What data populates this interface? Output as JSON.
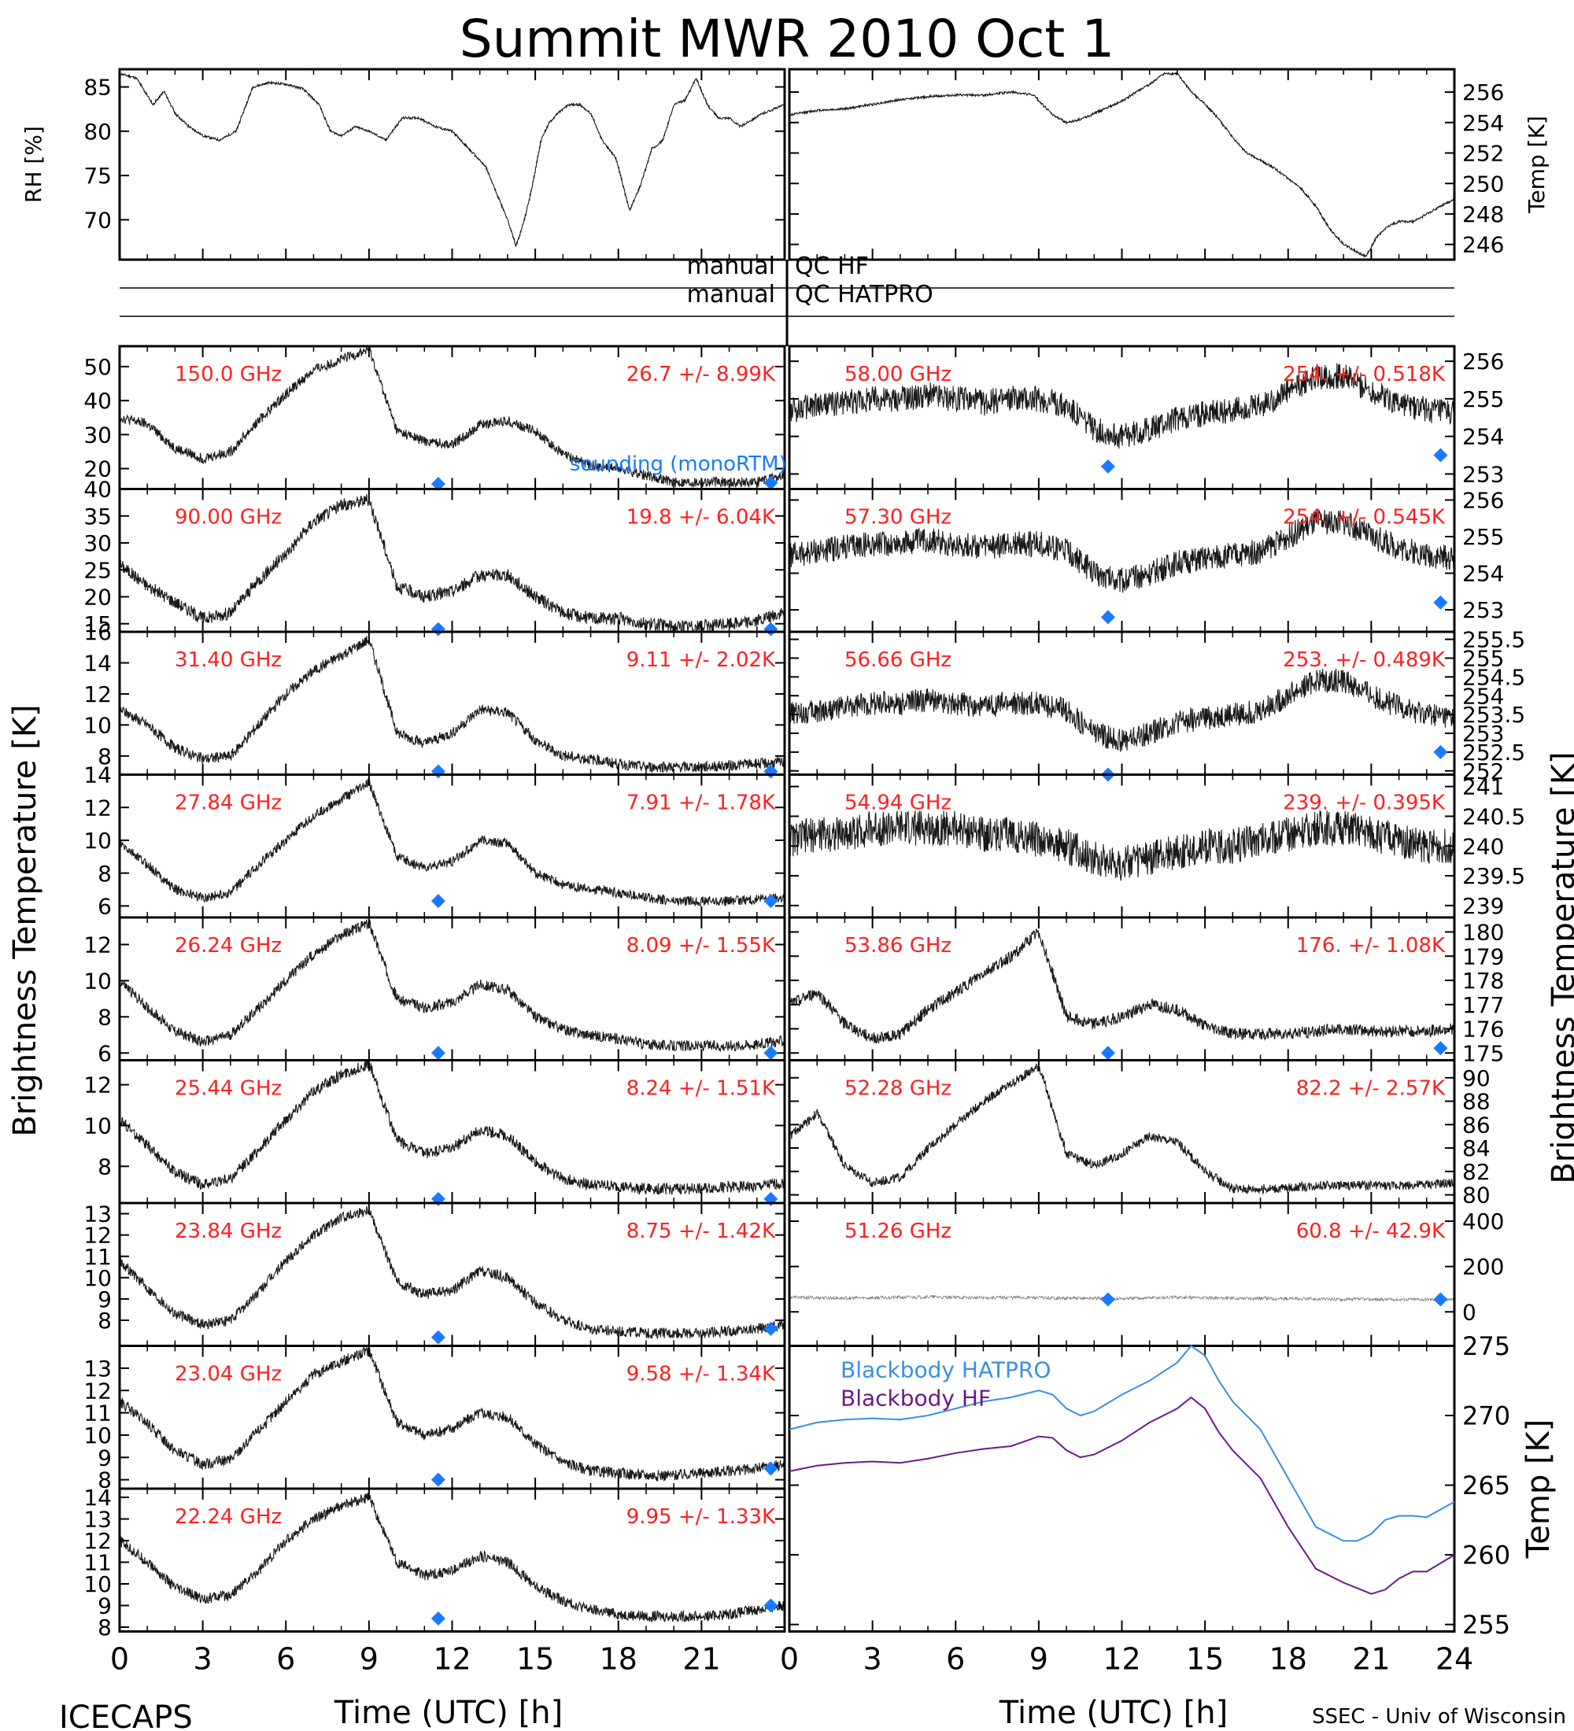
{
  "title": "Summit MWR 2010 Oct  1",
  "footer": {
    "left": "ICECAPS",
    "right": "SSEC - Univ of Wisconsin"
  },
  "xlabel": "Time (UTC) [h]",
  "x_ticks": [
    0,
    3,
    6,
    9,
    12,
    15,
    18,
    21,
    24
  ],
  "ylabel_left": "Brightness Temperature [K]",
  "ylabel_right": "Brightness Temperature [K]",
  "qc_labels": [
    {
      "left": "manual",
      "right": "QC HF"
    },
    {
      "left": "manual",
      "right": "QC HATPRO"
    }
  ],
  "colors": {
    "trace": "#000000",
    "label": "#ff2020",
    "sounding": "#1a7aff",
    "bb_hatpro": "#3a8ee6",
    "bb_hf": "#6a1a8a"
  },
  "chart_data": [
    {
      "type": "line",
      "panel": "met-left",
      "ylabel": "RH [%]",
      "yticks": [
        70,
        75,
        80,
        85
      ],
      "ylim": [
        65.5,
        87
      ],
      "x": [
        0,
        0.6,
        1.2,
        1.6,
        2.0,
        2.5,
        3.0,
        3.6,
        4.2,
        4.8,
        5.4,
        6.0,
        6.6,
        7.2,
        7.6,
        8.0,
        8.5,
        9.0,
        9.6,
        10.2,
        10.8,
        11.4,
        12.0,
        12.6,
        13.2,
        13.6,
        14.0,
        14.3,
        14.6,
        14.9,
        15.2,
        15.5,
        15.8,
        16.2,
        16.6,
        17.0,
        17.4,
        17.9,
        18.4,
        18.8,
        19.2,
        19.6,
        20.0,
        20.4,
        20.8,
        21.2,
        21.6,
        22.0,
        22.4,
        22.8,
        23.2,
        23.6,
        24.0
      ],
      "y": [
        86.5,
        86,
        83,
        84.5,
        82,
        80.5,
        79.5,
        79,
        80,
        85,
        85.5,
        85.3,
        84.8,
        83,
        80,
        79.5,
        80.5,
        80,
        79,
        81.5,
        81.5,
        80.5,
        80,
        78,
        76,
        73,
        70,
        67,
        70,
        74,
        79,
        81,
        82,
        83,
        83,
        82,
        79,
        77,
        71,
        74,
        78,
        79,
        83,
        83.5,
        86,
        83,
        81.5,
        81.5,
        80.5,
        81.3,
        82,
        82.5,
        83
      ]
    },
    {
      "type": "line",
      "panel": "met-right",
      "ylabel": "Temp [K]",
      "yticks": [
        246,
        248,
        250,
        252,
        254,
        256
      ],
      "ylim": [
        245,
        257.5
      ],
      "x": [
        0,
        1.0,
        2.0,
        3.0,
        4.0,
        5.0,
        6.0,
        7.0,
        8.0,
        8.8,
        9.5,
        10.0,
        10.5,
        11.0,
        11.5,
        12.0,
        12.5,
        13.0,
        13.5,
        14.0,
        14.5,
        15.0,
        15.5,
        16.0,
        16.5,
        17.0,
        17.5,
        18.0,
        18.5,
        19.0,
        19.5,
        20.0,
        20.5,
        20.8,
        21.2,
        21.6,
        22.0,
        22.5,
        23.0,
        23.5,
        24.0
      ],
      "y": [
        254.5,
        254.8,
        254.9,
        255.2,
        255.5,
        255.7,
        255.8,
        255.8,
        256,
        255.8,
        254.5,
        254,
        254.2,
        254.6,
        255,
        255.4,
        256,
        256.5,
        257.2,
        257.2,
        256,
        255.2,
        254.2,
        253,
        252,
        251.5,
        251,
        250.3,
        249.6,
        248.5,
        247,
        246,
        245.5,
        245.2,
        246.5,
        247.2,
        247.5,
        247.5,
        248,
        248.5,
        249
      ]
    },
    {
      "type": "line",
      "panel": "left",
      "freq": "150.0 GHz",
      "stats": "26.7 +/-  8.99K",
      "yticks": [
        20,
        30,
        40,
        50
      ],
      "ylim": [
        14,
        56
      ],
      "y": [
        35,
        33,
        26,
        23,
        25,
        34,
        42,
        49,
        52,
        55,
        31,
        28,
        27,
        33,
        34,
        31,
        24,
        21,
        20,
        18,
        16,
        16,
        16,
        16,
        18
      ],
      "noise": 1.5,
      "sounding": [
        15.5,
        15.8
      ],
      "sounding_note": "sounding (monoRTM)"
    },
    {
      "type": "line",
      "panel": "left",
      "freq": "90.00 GHz",
      "stats": "19.8 +/-  6.04K",
      "yticks": [
        15,
        20,
        25,
        30,
        35,
        40
      ],
      "ylim": [
        13.5,
        40
      ],
      "y": [
        26,
        22,
        19,
        16,
        17,
        23,
        28,
        34,
        37,
        38,
        22,
        20,
        21,
        24,
        24,
        20,
        17,
        16,
        16,
        15,
        14.5,
        14.5,
        15,
        15.5,
        17
      ],
      "noise": 1.2,
      "sounding": [
        14,
        14
      ]
    },
    {
      "type": "line",
      "panel": "left",
      "freq": "31.40 GHz",
      "stats": "9.11 +/- 2.02K",
      "yticks": [
        8,
        10,
        12,
        14,
        16
      ],
      "ylim": [
        6.8,
        16
      ],
      "y": [
        11,
        10,
        8.5,
        7.8,
        8,
        10,
        12,
        13.5,
        14.5,
        15.5,
        9.5,
        8.8,
        9.5,
        11,
        10.8,
        9,
        8,
        7.8,
        7.5,
        7.3,
        7.3,
        7.3,
        7.4,
        7.5,
        7.6
      ],
      "noise": 0.35,
      "sounding": [
        7,
        7
      ]
    },
    {
      "type": "line",
      "panel": "left",
      "freq": "27.84 GHz",
      "stats": "7.91 +/- 1.78K",
      "yticks": [
        6,
        8,
        10,
        12,
        14
      ],
      "ylim": [
        5.3,
        14
      ],
      "y": [
        9.8,
        8.5,
        7,
        6.5,
        6.8,
        8.5,
        10,
        11.5,
        12.5,
        13.5,
        9,
        8.3,
        8.7,
        10,
        9.8,
        8,
        7.3,
        7,
        6.8,
        6.5,
        6.3,
        6.3,
        6.3,
        6.4,
        6.5
      ],
      "noise": 0.3,
      "sounding": [
        6.3,
        6.3
      ]
    },
    {
      "type": "line",
      "panel": "left",
      "freq": "26.24 GHz",
      "stats": "8.09 +/- 1.55K",
      "yticks": [
        6,
        8,
        10,
        12
      ],
      "ylim": [
        5.6,
        13.5
      ],
      "y": [
        10,
        8.5,
        7.2,
        6.6,
        7,
        8.5,
        10,
        11.5,
        12.5,
        13.2,
        9,
        8.5,
        8.8,
        9.8,
        9.5,
        8,
        7.3,
        7,
        6.8,
        6.5,
        6.4,
        6.4,
        6.4,
        6.5,
        6.7
      ],
      "noise": 0.3,
      "sounding": [
        6,
        6
      ]
    },
    {
      "type": "line",
      "panel": "left",
      "freq": "25.44 GHz",
      "stats": "8.24 +/- 1.51K",
      "yticks": [
        8,
        10,
        12
      ],
      "ylim": [
        6.2,
        13.2
      ],
      "y": [
        10.3,
        9,
        7.7,
        7.1,
        7.4,
        8.8,
        10.3,
        11.7,
        12.5,
        13,
        9.3,
        8.6,
        8.9,
        9.8,
        9.5,
        8.2,
        7.4,
        7.1,
        7,
        6.9,
        6.9,
        6.9,
        7,
        7,
        7.2
      ],
      "noise": 0.28,
      "sounding": [
        6.4,
        6.4
      ]
    },
    {
      "type": "line",
      "panel": "left",
      "freq": "23.84 GHz",
      "stats": "8.75 +/- 1.42K",
      "yticks": [
        8,
        9,
        10,
        11,
        12,
        13
      ],
      "ylim": [
        6.8,
        13.5
      ],
      "y": [
        10.8,
        9.5,
        8.3,
        7.8,
        8,
        9.3,
        10.8,
        12,
        12.8,
        13.2,
        9.8,
        9.2,
        9.4,
        10.3,
        10,
        8.8,
        8,
        7.6,
        7.5,
        7.4,
        7.4,
        7.4,
        7.5,
        7.6,
        7.8
      ],
      "noise": 0.25,
      "sounding": [
        7.2,
        7.6
      ]
    },
    {
      "type": "line",
      "panel": "left",
      "freq": "23.04 GHz",
      "stats": "9.58 +/- 1.34K",
      "yticks": [
        8,
        9,
        10,
        11,
        12,
        13
      ],
      "ylim": [
        7.6,
        14
      ],
      "y": [
        11.5,
        10.5,
        9.3,
        8.7,
        8.9,
        10.2,
        11.5,
        12.7,
        13.3,
        13.8,
        10.6,
        10,
        10.3,
        11,
        10.8,
        9.6,
        8.8,
        8.4,
        8.3,
        8.2,
        8.2,
        8.3,
        8.4,
        8.5,
        8.7
      ],
      "noise": 0.25,
      "sounding": [
        8,
        8.5
      ]
    },
    {
      "type": "line",
      "panel": "left",
      "freq": "22.24 GHz",
      "stats": "9.95 +/- 1.33K",
      "yticks": [
        8,
        9,
        10,
        11,
        12,
        13,
        14
      ],
      "ylim": [
        7.8,
        14.4
      ],
      "y": [
        12,
        11,
        9.8,
        9.3,
        9.5,
        10.6,
        12,
        13,
        13.6,
        14,
        11,
        10.4,
        10.6,
        11.3,
        11,
        9.9,
        9.2,
        8.8,
        8.6,
        8.5,
        8.5,
        8.5,
        8.6,
        8.8,
        9
      ],
      "noise": 0.25,
      "sounding": [
        8.4,
        9
      ]
    },
    {
      "type": "line",
      "panel": "right",
      "freq": "58.00 GHz",
      "stats": "254. +/- 0.518K",
      "yticks": [
        253,
        254,
        255,
        256
      ],
      "ylim": [
        252.6,
        256.4
      ],
      "y": [
        254.7,
        254.8,
        254.9,
        255,
        255,
        255.1,
        255,
        254.9,
        255,
        255,
        254.8,
        254.2,
        254,
        254.2,
        254.5,
        254.6,
        254.7,
        254.8,
        255.2,
        255.6,
        255.6,
        255.2,
        254.9,
        254.7,
        254.6
      ],
      "noise": 0.35,
      "sounding": [
        253.2,
        253.5
      ]
    },
    {
      "type": "line",
      "panel": "right",
      "freq": "57.30 GHz",
      "stats": "254. +/- 0.545K",
      "yticks": [
        253,
        254,
        255,
        256
      ],
      "ylim": [
        252.4,
        256.3
      ],
      "y": [
        254.5,
        254.6,
        254.7,
        254.8,
        254.8,
        254.9,
        254.8,
        254.7,
        254.8,
        254.8,
        254.6,
        254,
        253.8,
        254,
        254.3,
        254.4,
        254.5,
        254.6,
        255,
        255.4,
        255.4,
        255,
        254.7,
        254.5,
        254.4
      ],
      "noise": 0.35,
      "sounding": [
        252.8,
        253.2
      ]
    },
    {
      "type": "line",
      "panel": "right",
      "freq": "56.66 GHz",
      "stats": "253. +/- 0.489K",
      "yticks": [
        252,
        252.5,
        253,
        253.5,
        254,
        254.5,
        255,
        255.5
      ],
      "ylim": [
        251.9,
        255.7
      ],
      "y": [
        253.5,
        253.6,
        253.7,
        253.8,
        253.8,
        253.9,
        253.8,
        253.7,
        253.8,
        253.8,
        253.6,
        253,
        252.8,
        253,
        253.3,
        253.4,
        253.5,
        253.6,
        254,
        254.4,
        254.4,
        254,
        253.7,
        253.5,
        253.4
      ],
      "noise": 0.32,
      "sounding": [
        251.9,
        252.5
      ]
    },
    {
      "type": "line",
      "panel": "right",
      "freq": "54.94 GHz",
      "stats": "239. +/- 0.395K",
      "yticks": [
        239,
        239.5,
        240,
        240.5,
        241
      ],
      "ylim": [
        238.8,
        241.2
      ],
      "y": [
        240.1,
        240.2,
        240.2,
        240.3,
        240.3,
        240.3,
        240.3,
        240.2,
        240.2,
        240.1,
        240,
        239.8,
        239.7,
        239.8,
        239.9,
        240,
        240,
        240.1,
        240.2,
        240.3,
        240.3,
        240.2,
        240.1,
        240,
        240
      ],
      "noise": 0.3,
      "sounding": []
    },
    {
      "type": "line",
      "panel": "right",
      "freq": "53.86 GHz",
      "stats": "176. +/- 1.08K",
      "yticks": [
        175,
        176,
        177,
        178,
        179,
        180
      ],
      "ylim": [
        174.7,
        180.6
      ],
      "y": [
        177,
        177.5,
        176.2,
        175.6,
        175.8,
        176.8,
        177.5,
        178.3,
        179,
        180,
        176.5,
        176.2,
        176.5,
        177,
        176.8,
        176.1,
        175.8,
        175.8,
        175.8,
        175.9,
        176,
        175.9,
        175.9,
        175.9,
        176
      ],
      "noise": 0.25,
      "sounding": [
        175,
        175.2
      ]
    },
    {
      "type": "line",
      "panel": "right",
      "freq": "52.28 GHz",
      "stats": "82.2 +/- 2.57K",
      "yticks": [
        80,
        82,
        84,
        86,
        88,
        90
      ],
      "ylim": [
        79.3,
        91.5
      ],
      "y": [
        85,
        87,
        82.5,
        81,
        81.5,
        84,
        86,
        88,
        89.5,
        91,
        83.5,
        82.5,
        83.5,
        85,
        84.5,
        82,
        80.5,
        80.5,
        80.6,
        80.8,
        80.8,
        80.8,
        80.8,
        80.9,
        81
      ],
      "noise": 0.4,
      "sounding": []
    },
    {
      "type": "scatter",
      "panel": "right",
      "freq": "51.26 GHz",
      "stats": "60.8 +/- 42.9K",
      "yticks": [
        0,
        200,
        400
      ],
      "ylim": [
        -150,
        480
      ],
      "y": [
        65,
        62,
        60,
        62,
        64,
        66,
        64,
        62,
        64,
        62,
        60,
        60,
        58,
        62,
        64,
        62,
        60,
        60,
        58,
        56,
        55,
        55,
        55,
        55,
        55
      ],
      "noise": 8,
      "sounding": [
        55,
        55
      ]
    },
    {
      "type": "line",
      "panel": "right-bb",
      "ylabel": "Temp [K]",
      "yticks": [
        255,
        260,
        265,
        270,
        275
      ],
      "ylim": [
        254.5,
        275
      ],
      "x": [
        0,
        1,
        2,
        3,
        4,
        5,
        6,
        7,
        8,
        9,
        9.5,
        10,
        10.5,
        11,
        12,
        13,
        14,
        14.5,
        15,
        15.5,
        16,
        17,
        18,
        19,
        20,
        20.5,
        21,
        21.5,
        22,
        22.5,
        23,
        24
      ],
      "series": [
        {
          "name": "Blackbody HATPRO",
          "color": "#3a8ee6",
          "values": [
            269,
            269.5,
            269.7,
            269.8,
            269.7,
            270,
            270.5,
            271,
            271.3,
            271.8,
            271.5,
            270.5,
            270,
            270.3,
            271.5,
            272.5,
            273.8,
            275,
            274.3,
            272.5,
            271,
            269,
            265.5,
            262,
            261,
            261,
            261.5,
            262.5,
            262.8,
            262.8,
            262.7,
            263.8
          ]
        },
        {
          "name": "Blackbody HF",
          "color": "#6a1a8a",
          "values": [
            266,
            266.4,
            266.6,
            266.7,
            266.6,
            266.9,
            267.3,
            267.6,
            267.8,
            268.5,
            268.4,
            267.5,
            267,
            267.2,
            268.2,
            269.5,
            270.5,
            271.3,
            270.5,
            268.8,
            267.5,
            265.5,
            262,
            259,
            258,
            257.6,
            257.2,
            257.5,
            258.3,
            258.8,
            258.8,
            260
          ]
        }
      ]
    }
  ]
}
